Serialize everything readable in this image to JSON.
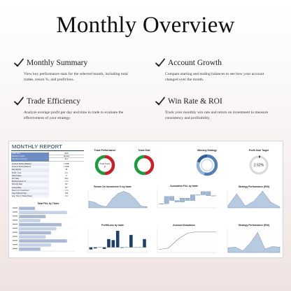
{
  "page": {
    "title": "Monthly Overview"
  },
  "features": [
    {
      "name": "Monthly Summary",
      "desc": "View key performance stats for the selected month, including total trades, return %, and profit/loss."
    },
    {
      "name": "Account Growth",
      "desc": "Compare starting and ending balances to see how your account changed over the month."
    },
    {
      "name": "Trade Efficiency",
      "desc": "Analyze average profit per day and time in trade to evaluate the effectiveness of your strategy."
    },
    {
      "name": "Win Rate & ROI",
      "desc": "Track your monthly win rate and return on investment to measure consistency and profitability."
    }
  ],
  "icons": {
    "feature": "check-icon"
  },
  "colors": {
    "navy": "#1d3f6b",
    "green": "#1a9d3c",
    "red": "#c9202a",
    "steel_blue": "#4f7fb8",
    "area_blue": "#9fb8d6",
    "light_gray": "#d9d9d9"
  },
  "dashboard": {
    "title": "MONTHLY REPORT",
    "selectors": [
      {
        "label": "Initial Year",
        "value": "2025"
      },
      {
        "label": "Choose a month",
        "value": "January"
      },
      {
        "label": "Choose an account",
        "value": "ALL"
      }
    ],
    "stats": [
      {
        "label": "Account Starting Balance",
        "value": "1.005€",
        "tone": ""
      },
      {
        "label": "Account Ending Balance",
        "value": "1.050€",
        "tone": ""
      },
      {
        "label": "Net Deposit",
        "value": "0€",
        "tone": ""
      },
      {
        "label": "Profit / Loss",
        "value": "45€",
        "tone": "pos"
      },
      {
        "label": "Total Trades",
        "value": "8",
        "tone": ""
      },
      {
        "label": "Win Rate",
        "value": "50%",
        "tone": ""
      },
      {
        "label": "Monthly Return %",
        "value": "4.5%",
        "tone": "pos"
      },
      {
        "label": "Winning Rate",
        "value": "50*",
        "tone": ""
      },
      {
        "label": "Losing Rate",
        "value": "50*",
        "tone": ""
      },
      {
        "label": "Return On Investment",
        "value": "4.5%",
        "tone": "pos"
      },
      {
        "label": "Avg. Profit per Day",
        "value": "15€",
        "tone": ""
      },
      {
        "label": "Avg. Time in Trade (Days)",
        "value": "0.6",
        "tone": ""
      }
    ]
  },
  "chart_data": [
    {
      "type": "pie",
      "title": "Trade Performance",
      "center_label": "Total Trade",
      "center_value": "8",
      "slices": [
        {
          "value": 50
        },
        {
          "value": 50
        }
      ]
    },
    {
      "type": "pie",
      "title": "Trade Side",
      "slices": [
        {
          "value": 48
        },
        {
          "value": 52
        }
      ]
    },
    {
      "type": "pie",
      "title": "Winning Strategy",
      "slices": [
        {
          "value": 55
        },
        {
          "value": 25
        },
        {
          "value": 20
        }
      ]
    },
    {
      "type": "pie",
      "title": "Profit Goal Target",
      "center_value": "2.52%",
      "progress": 0.0252
    },
    {
      "type": "area",
      "title": "Return On Investment % by trade",
      "x": [
        1,
        2,
        3,
        4,
        5,
        6,
        7,
        8,
        9,
        10,
        11
      ],
      "values": [
        1.2,
        1.0,
        0.4,
        0.2,
        1.6,
        2.6,
        3.0,
        2.6,
        1.6,
        0.3,
        0.2
      ],
      "ylim": [
        0,
        3.2
      ]
    },
    {
      "type": "bar",
      "title": "Cumulative P&L by trade",
      "x": [
        1,
        2,
        3,
        4,
        5,
        6,
        7,
        8,
        9,
        10,
        11
      ],
      "values": [
        0,
        18,
        8,
        4,
        14,
        8,
        22,
        22,
        30,
        20,
        20
      ],
      "ylim": [
        -10,
        35
      ]
    },
    {
      "type": "area",
      "title": "Strategy Performance (ROI)",
      "x": [
        1,
        2,
        3,
        4,
        5,
        6,
        7
      ],
      "values": [
        0.5,
        3.2,
        0.4,
        1.5,
        3.8,
        1.2,
        0.2
      ],
      "ylim": [
        0,
        4
      ]
    },
    {
      "type": "bar",
      "title": "Total P&L by Ticker",
      "categories": [
        "",
        "",
        "",
        "",
        "",
        "",
        "",
        "",
        "",
        "",
        ""
      ],
      "values": [
        0.3,
        0.9,
        0.5,
        0.4,
        0.8,
        0.7,
        0.6,
        0.5,
        0.9,
        0.6,
        0.4
      ],
      "ylim": [
        0,
        1
      ]
    },
    {
      "type": "bar",
      "title": "Profit/Loss by trade",
      "x": [
        1,
        2,
        3,
        4,
        5,
        6,
        7,
        8,
        9,
        10,
        11,
        12,
        13
      ],
      "values": [
        -2,
        -1,
        0,
        -1.5,
        8,
        7,
        16,
        -0.5,
        0,
        12,
        0,
        0,
        8
      ],
      "ylim": [
        -5,
        18
      ]
    },
    {
      "type": "line",
      "title": "Account Drawdown",
      "x": [
        1,
        2,
        3,
        4,
        5,
        6,
        7
      ],
      "values": [
        -12,
        -11,
        -5,
        -1,
        0,
        0,
        0
      ],
      "ylim": [
        -14,
        2
      ]
    },
    {
      "type": "area",
      "title": "Strategy Performance (ROI)",
      "x": [
        1,
        2,
        3,
        4,
        5,
        6,
        7,
        8
      ],
      "values": [
        0.8,
        0.9,
        0.3,
        1.6,
        3.4,
        0.6,
        1.0,
        0.9
      ],
      "ylim": [
        0,
        4
      ]
    }
  ]
}
